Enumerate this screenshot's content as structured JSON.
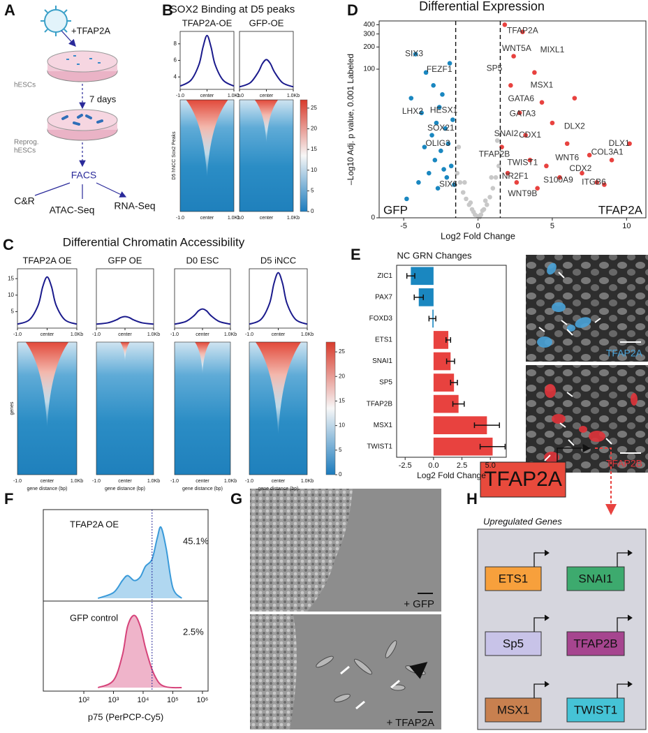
{
  "panel_labels": [
    "A",
    "B",
    "C",
    "D",
    "E",
    "F",
    "G",
    "H"
  ],
  "panel_a": {
    "vector": "+TFAP2A",
    "start": "hESCs",
    "duration": "7 days",
    "reprogrammed": [
      "Reprog.",
      "hESCs"
    ],
    "sort": "FACS",
    "assays": [
      "C&R",
      "ATAC-Seq",
      "RNA-Seq"
    ]
  },
  "panel_e_images": {
    "labels": [
      "TFAP2A",
      "TFAP2B"
    ]
  },
  "panel_g": {
    "labels": [
      "+ GFP",
      "+ TFAP2A"
    ]
  },
  "panel_h": {
    "regulator": "TFAP2A",
    "box_title": "Upregulated Genes",
    "genes": [
      "ETS1",
      "SNAI1",
      "Sp5",
      "TFAP2B",
      "MSX1",
      "TWIST1"
    ]
  },
  "chart_data": [
    {
      "type": "line",
      "title": "SOX2 Binding at D5 peaks",
      "x": [
        -1,
        -0.6,
        -0.3,
        -0.15,
        0,
        0.15,
        0.3,
        0.6,
        1
      ],
      "xlim": [
        -1,
        1
      ],
      "xticks": [
        {
          "value": -1,
          "label": "-1.0"
        },
        {
          "value": 0,
          "label": "center"
        },
        {
          "value": 1,
          "label": "1.0Kb"
        }
      ],
      "ylim": [
        2.5,
        9.5
      ],
      "yticks": [
        4,
        6,
        8
      ],
      "series": [
        {
          "name": "TFAP2A-OE",
          "color": "#1a1a8c",
          "values": [
            2.9,
            3.6,
            5.5,
            7.6,
            9.0,
            7.6,
            5.5,
            3.6,
            2.9
          ]
        },
        {
          "name": "GFP-OE",
          "color": "#1a1a8c",
          "values": [
            2.8,
            3.3,
            4.6,
            5.6,
            6.1,
            5.6,
            4.6,
            3.3,
            2.8
          ]
        }
      ],
      "heatmap_label": "D5 hNCC Sox2 Peaks",
      "colorbar_lim": [
        0,
        27
      ],
      "colorbar_ticks": [
        0,
        5,
        10,
        15,
        20,
        25
      ]
    },
    {
      "type": "line",
      "title": "Differential Chromatin Accessibility",
      "x": [
        -1,
        -0.6,
        -0.3,
        -0.15,
        0,
        0.15,
        0.3,
        0.6,
        1
      ],
      "xlim": [
        -1,
        1
      ],
      "xticks": [
        {
          "value": -1,
          "label": "-1.0"
        },
        {
          "value": 0,
          "label": "center"
        },
        {
          "value": 1,
          "label": "1.0Kb"
        }
      ],
      "ylim": [
        0,
        18
      ],
      "yticks": [
        5,
        10,
        15
      ],
      "xlabel": "gene distance (bp)",
      "series": [
        {
          "name": "TFAP2A OE",
          "color": "#1a1a8c",
          "values": [
            1.2,
            2.5,
            7,
            12.5,
            15.5,
            12.5,
            7,
            2.5,
            1.2
          ]
        },
        {
          "name": "GFP OE",
          "color": "#1a1a8c",
          "values": [
            1.2,
            1.6,
            2.5,
            3.2,
            3.5,
            3.2,
            2.5,
            1.6,
            1.2
          ]
        },
        {
          "name": "D0 ESC",
          "color": "#1a1a8c",
          "values": [
            1.2,
            2,
            3.8,
            5.2,
            5.8,
            5.2,
            3.8,
            2,
            1.2
          ]
        },
        {
          "name": "D5 iNCC",
          "color": "#1a1a8c",
          "values": [
            1.2,
            2.6,
            7.5,
            13.5,
            16.8,
            13.5,
            7.5,
            2.6,
            1.2
          ]
        }
      ],
      "heatmap_label": "genes",
      "colorbar_lim": [
        0,
        27
      ],
      "colorbar_ticks": [
        0,
        5,
        10,
        15,
        20,
        25
      ]
    },
    {
      "type": "scatter",
      "title": "Differential Expression",
      "xlabel": "Log2 Fold Change",
      "ylabel": "–Log10 Adj. p value, 0.001 Labeled",
      "yscale": "log1p",
      "xlim": [
        -6.65,
        11.3
      ],
      "ylim": [
        0,
        450
      ],
      "xticks": [
        -5,
        0,
        5,
        10
      ],
      "yticks": [
        0,
        100,
        200,
        300,
        400
      ],
      "thresholds": [
        -1.5,
        1.5
      ],
      "series": [
        {
          "color": "#c8c8c8",
          "x": [
            -1.4,
            -1.2,
            -1.0,
            -0.8,
            -0.6,
            -0.4,
            -0.2,
            0,
            0.2,
            0.4,
            0.6,
            0.8,
            1.0,
            1.2,
            1.4,
            -1.3,
            -0.9,
            -0.5,
            0.5,
            0.9,
            1.3,
            -0.3,
            0.3,
            0.1
          ],
          "values": [
            3,
            2,
            1.2,
            0.8,
            0.5,
            0.3,
            0.1,
            0.05,
            0.1,
            0.3,
            0.5,
            0.9,
            1.5,
            2.5,
            4,
            8,
            2,
            0.6,
            0.7,
            2.5,
            10,
            0.2,
            0.25,
            0.02
          ]
        },
        {
          "name": "GFP",
          "color": "#1a87c0",
          "x": [
            -4.8,
            -4.5,
            -4.2,
            -4.0,
            -3.8,
            -3.6,
            -3.5,
            -3.3,
            -3.1,
            -3.0,
            -2.9,
            -2.8,
            -2.7,
            -2.6,
            -2.5,
            -2.4,
            -2.3,
            -2.2,
            -2.1,
            -2.0,
            -1.9,
            -1.8,
            -1.7,
            -1.6
          ],
          "values": [
            0.8,
            40,
            160,
            2,
            25,
            8,
            90,
            3,
            12,
            60,
            5,
            18,
            1.5,
            30,
            7,
            45,
            3.5,
            15,
            2.5,
            9,
            120,
            4,
            20,
            1.8
          ]
        },
        {
          "name": "TFAP2A",
          "color": "#e8423f",
          "x": [
            1.6,
            1.8,
            2.0,
            2.2,
            2.4,
            2.6,
            2.8,
            3.0,
            3.2,
            3.5,
            3.8,
            4.0,
            4.3,
            4.6,
            5.0,
            5.5,
            6.0,
            6.5,
            7.0,
            7.5,
            8.0,
            8.5,
            9.0,
            10.2
          ],
          "values": [
            8,
            400,
            3,
            60,
            150,
            2,
            25,
            320,
            12,
            5,
            90,
            1.5,
            35,
            4,
            18,
            2.5,
            9,
            40,
            3,
            6,
            2,
            1.8,
            5,
            9
          ]
        }
      ],
      "annotations": [
        {
          "text": "SIX3",
          "x": -4.3,
          "y": 161
        },
        {
          "text": "FEZF1",
          "x": -2.6,
          "y": 98
        },
        {
          "text": "LHX2",
          "x": -4.4,
          "y": 26
        },
        {
          "text": "HESX1",
          "x": -2.3,
          "y": 27
        },
        {
          "text": "SOX21",
          "x": -2.5,
          "y": 15
        },
        {
          "text": "OLIG3",
          "x": -2.7,
          "y": 9
        },
        {
          "text": "SIX6",
          "x": -2.0,
          "y": 1.8
        },
        {
          "text": "TFAP2A",
          "x": 3.0,
          "y": 331
        },
        {
          "text": "WNT5A",
          "x": 2.6,
          "y": 190
        },
        {
          "text": "MIXL1",
          "x": 5.0,
          "y": 181
        },
        {
          "text": "SP5",
          "x": 1.1,
          "y": 102
        },
        {
          "text": "MSX1",
          "x": 4.3,
          "y": 60
        },
        {
          "text": "GATA6",
          "x": 2.9,
          "y": 39
        },
        {
          "text": "GATA3",
          "x": 3.0,
          "y": 24
        },
        {
          "text": "DLX2",
          "x": 6.5,
          "y": 16
        },
        {
          "text": "DLX1",
          "x": 9.5,
          "y": 9
        },
        {
          "text": "SNAI2",
          "x": 1.9,
          "y": 12.5
        },
        {
          "text": "CDX1",
          "x": 3.5,
          "y": 12
        },
        {
          "text": "TFAP2B",
          "x": 1.1,
          "y": 6.1
        },
        {
          "text": "TWIST1",
          "x": 3.0,
          "y": 4.5
        },
        {
          "text": "WNT6",
          "x": 6.0,
          "y": 5.4
        },
        {
          "text": "COL3A1",
          "x": 8.7,
          "y": 6.6
        },
        {
          "text": "CDX2",
          "x": 6.9,
          "y": 3.6
        },
        {
          "text": "NR2F1",
          "x": 2.5,
          "y": 2.6
        },
        {
          "text": "S100A9",
          "x": 5.4,
          "y": 2.2
        },
        {
          "text": "ITGB6",
          "x": 7.8,
          "y": 2.0
        },
        {
          "text": "WNT9B",
          "x": 3.0,
          "y": 1.1
        }
      ]
    },
    {
      "type": "bar",
      "title": "NC GRN Changes",
      "xlabel": "Log2 Fold Change",
      "categories": [
        "ZIC1",
        "PAX7",
        "FOXD3",
        "ETS1",
        "SNAI1",
        "SP5",
        "TFAP2B",
        "MSX1",
        "TWIST1"
      ],
      "values": [
        -2.0,
        -1.3,
        -0.1,
        1.3,
        1.5,
        1.8,
        2.2,
        4.7,
        5.2
      ],
      "errors": [
        0.35,
        0.4,
        0.3,
        0.2,
        0.35,
        0.3,
        0.5,
        1.1,
        1.1
      ],
      "colors": {
        "negative": "#1a87c0",
        "positive": "#e8423f"
      },
      "xlim": [
        -3.25,
        6.4
      ],
      "xticks": [
        -2.5,
        {
          "value": 0,
          "label": "0.0"
        },
        2.5,
        {
          "value": 5,
          "label": "5.0"
        }
      ]
    },
    {
      "type": "area",
      "xlabel": "p75 (PerPCP-Cy5)",
      "xscale": "log",
      "xlim": [
        4.3,
        1550000
      ],
      "xticks": [
        {
          "value": 100,
          "label": "10²"
        },
        {
          "value": 1000,
          "label": "10³"
        },
        {
          "value": 10000,
          "label": "10⁴"
        },
        {
          "value": 100000,
          "label": "10⁵"
        },
        {
          "value": 1000000,
          "label": "10⁶"
        }
      ],
      "gate": 20000,
      "ylim": [
        0,
        1.15
      ],
      "x": [
        300,
        1000,
        2000,
        3000,
        5000,
        8000,
        12000,
        20000,
        30000,
        40000,
        60000,
        100000,
        200000
      ],
      "series": [
        {
          "name": "TFAP2A OE",
          "color": "#3a9ad9",
          "values": [
            0,
            0.08,
            0.25,
            0.32,
            0.25,
            0.3,
            0.45,
            0.55,
            0.85,
            1.0,
            0.7,
            0.15,
            0
          ],
          "gated_percent": 45.1,
          "gated_percent_label": "45.1%"
        },
        {
          "name": "GFP control",
          "color": "#d6437a",
          "values": [
            0,
            0.1,
            0.45,
            0.85,
            1.0,
            0.85,
            0.55,
            0.25,
            0.1,
            0.04,
            0.01,
            0,
            0
          ],
          "gated_percent": 2.5,
          "gated_percent_label": "2.5%"
        }
      ]
    }
  ]
}
